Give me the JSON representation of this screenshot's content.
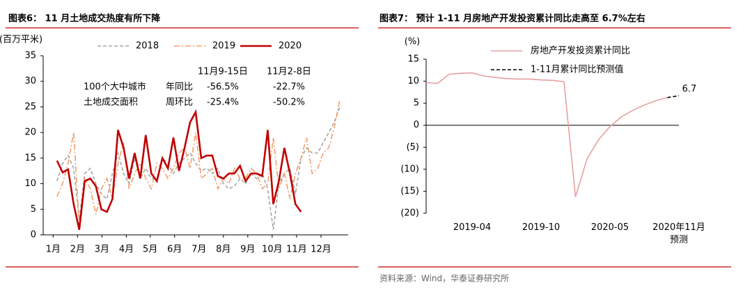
{
  "charts": [
    {
      "chart_data": {
        "type": "line",
        "title": "图表6：  11 月土地成交热度有所下降",
        "y_label": "(百万平米)",
        "x": [
          1,
          2,
          3,
          4,
          5,
          6,
          7,
          8,
          9,
          10,
          11,
          12,
          13,
          14,
          15,
          16,
          17,
          18,
          19,
          20,
          21,
          22,
          23,
          24,
          25,
          26,
          27,
          28,
          29,
          30,
          31,
          32,
          33,
          34,
          35,
          36,
          37,
          38,
          39,
          40,
          41,
          42,
          43,
          44,
          45,
          46,
          47,
          48,
          49,
          50,
          51,
          52
        ],
        "xlim": [
          -1.5,
          53.5
        ],
        "xticks": [
          {
            "value": 0.3,
            "label": "1月"
          },
          {
            "value": 4.7,
            "label": "2月"
          },
          {
            "value": 9.1,
            "label": "3月"
          },
          {
            "value": 13.5,
            "label": "4月"
          },
          {
            "value": 17.8,
            "label": "5月"
          },
          {
            "value": 22.2,
            "label": "6月"
          },
          {
            "value": 26.6,
            "label": "7月"
          },
          {
            "value": 31,
            "label": "8月"
          },
          {
            "value": 35.4,
            "label": "9月"
          },
          {
            "value": 39.8,
            "label": "10月"
          },
          {
            "value": 44.2,
            "label": "11月"
          },
          {
            "value": 48.6,
            "label": "12月"
          }
        ],
        "ylim": [
          0,
          35
        ],
        "yticks": [
          0,
          5,
          10,
          15,
          20,
          25,
          30,
          35
        ],
        "legend": "top",
        "series": [
          {
            "name": "2018",
            "color": "#a6a6a6",
            "style": "dashed",
            "values": [
              10.5,
              14,
              15.5,
              13,
              3,
              12,
              13,
              10,
              8,
              7,
              12,
              16,
              12,
              10,
              15,
              11,
              13,
              11,
              11,
              15,
              14,
              12,
              14,
              15,
              16,
              14,
              12.5,
              13,
              12,
              13,
              10,
              9,
              9.5,
              11,
              10,
              12,
              11,
              12,
              9,
              1,
              10,
              12,
              13,
              8,
              15,
              17,
              16,
              16,
              18,
              20,
              22,
              25
            ]
          },
          {
            "name": "2019",
            "color": "#f0a070",
            "style": "dashdot",
            "values": [
              7.5,
              10,
              14,
              20,
              2,
              11,
              9,
              4,
              9,
              11,
              7,
              14,
              18,
              9,
              12,
              14,
              11,
              9,
              14,
              13,
              11,
              13,
              16,
              17,
              13,
              20,
              11,
              12,
              13,
              9,
              11,
              10,
              13,
              11,
              11,
              13,
              12,
              9,
              10,
              19,
              9,
              12,
              7,
              12,
              15,
              19,
              12,
              13,
              16,
              17,
              21,
              26.5
            ]
          },
          {
            "name": "2020",
            "color": "#c00000",
            "style": "solid",
            "values": [
              14.5,
              12.2,
              12.8,
              6,
              1,
              10.5,
              11,
              9.5,
              5,
              4.5,
              7,
              20.5,
              17,
              11,
              16,
              11,
              19.5,
              12,
              10.5,
              15,
              13,
              19,
              12.5,
              17,
              22,
              24,
              15,
              15.5,
              15.5,
              11.5,
              11,
              12,
              12,
              13.5,
              10.5,
              12,
              12,
              11.5,
              20.5,
              6,
              10.5,
              17,
              12,
              6,
              4.5,
              null,
              null,
              null,
              null,
              null,
              null,
              null
            ]
          }
        ],
        "annotation": {
          "columns": [
            "11月9-15日",
            "11月2-8日"
          ],
          "rows": [
            {
              "label": "100个大中城市",
              "metric": "年同比",
              "values": [
                "-56.5%",
                "-22.7%"
              ]
            },
            {
              "label": "土地成交面积",
              "metric": "周环比",
              "values": [
                "-25.4%",
                "-50.2%"
              ]
            }
          ]
        }
      }
    },
    {
      "chart_data": {
        "type": "line",
        "title": "图表7：  预计 1-11 月房地产开发投资累计同比走高至 6.7%左右",
        "y_label": "(%)",
        "categories": [
          null,
          null,
          null,
          null,
          "2019-04",
          null,
          null,
          null,
          null,
          null,
          "2019-10",
          null,
          null,
          null,
          null,
          null,
          "2020-05",
          null,
          null,
          null,
          null,
          null,
          "2020年11月预测"
        ],
        "ylim": [
          -20,
          15
        ],
        "yticks": [
          {
            "value": -20,
            "label": "(20)"
          },
          {
            "value": -15,
            "label": "(15)"
          },
          {
            "value": -10,
            "label": "(10)"
          },
          {
            "value": -5,
            "label": "(5)"
          },
          0,
          5,
          10,
          15
        ],
        "legend": "upper left",
        "annotation": "6.7",
        "source": "资料来源：Wind，华泰证券研究所",
        "series": [
          {
            "name": "房地产开发投资累计同比",
            "color": "#e8a0a0",
            "style": "solid",
            "values": [
              9.7,
              9.5,
              11.6,
              11.8,
              11.9,
              11.2,
              10.9,
              10.6,
              10.5,
              10.5,
              10.3,
              10.2,
              9.9,
              -16.3,
              -7.7,
              -3.3,
              -0.3,
              1.9,
              3.4,
              4.6,
              5.6,
              6.3,
              null
            ]
          },
          {
            "name": "1-11月累计同比预测值",
            "color": "#000000",
            "style": "dashed",
            "values": [
              null,
              null,
              null,
              null,
              null,
              null,
              null,
              null,
              null,
              null,
              null,
              null,
              null,
              null,
              null,
              null,
              null,
              null,
              null,
              null,
              null,
              6.3,
              6.7
            ]
          }
        ]
      }
    }
  ]
}
